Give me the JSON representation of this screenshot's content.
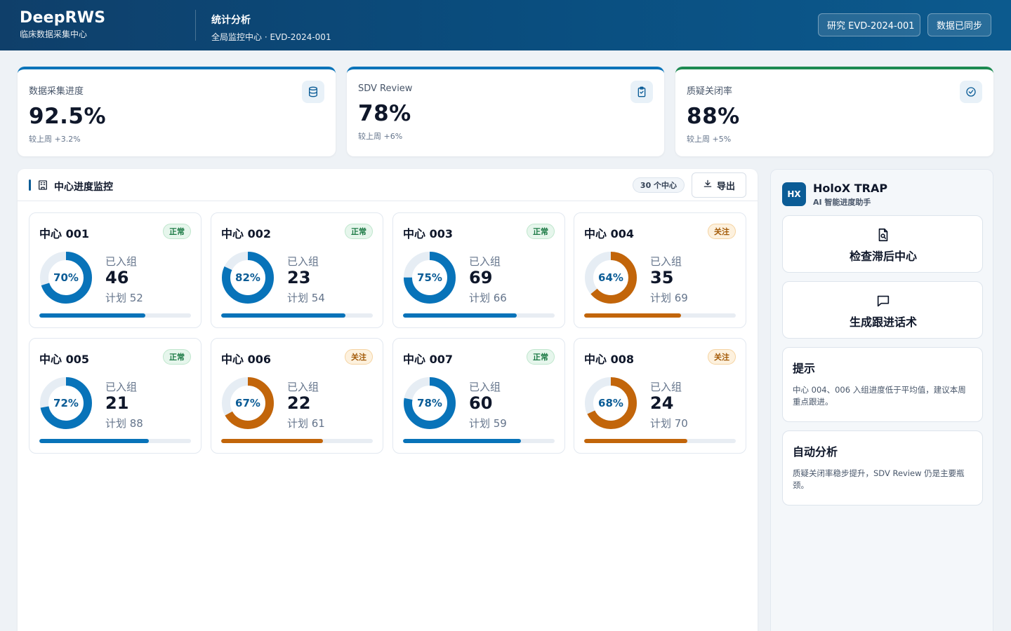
{
  "header": {
    "brand": "DeepRWS",
    "brand_sub": "临床数据采集中心",
    "page_title": "统计分析",
    "page_sub": "全局监控中心 · EVD-2024-001",
    "study_button": "研究 EVD-2024-001",
    "sync_button": "数据已同步"
  },
  "kpis": [
    {
      "label": "数据采集进度",
      "value": "92.5%",
      "delta": "较上周 +3.2%",
      "icon": "database-icon"
    },
    {
      "label": "SDV Review",
      "value": "78%",
      "delta": "较上周 +6%",
      "icon": "clipboard-check-icon"
    },
    {
      "label": "质疑关闭率",
      "value": "88%",
      "delta": "较上周 +5%",
      "icon": "check-circle-icon"
    }
  ],
  "panel": {
    "title": "中心进度监控",
    "count": "30 个中心",
    "export": "导出"
  },
  "centers": [
    {
      "name": "中心 001",
      "status": "正常",
      "level": "ok",
      "pct": 70,
      "pct_label": "70%",
      "enrolled_label": "已入组",
      "enrolled": "46",
      "plan": "计划 52"
    },
    {
      "name": "中心 002",
      "status": "正常",
      "level": "ok",
      "pct": 82,
      "pct_label": "82%",
      "enrolled_label": "已入组",
      "enrolled": "23",
      "plan": "计划 54"
    },
    {
      "name": "中心 003",
      "status": "正常",
      "level": "ok",
      "pct": 75,
      "pct_label": "75%",
      "enrolled_label": "已入组",
      "enrolled": "69",
      "plan": "计划 66"
    },
    {
      "name": "中心 004",
      "status": "关注",
      "level": "warn",
      "pct": 64,
      "pct_label": "64%",
      "enrolled_label": "已入组",
      "enrolled": "35",
      "plan": "计划 69"
    },
    {
      "name": "中心 005",
      "status": "正常",
      "level": "ok",
      "pct": 72,
      "pct_label": "72%",
      "enrolled_label": "已入组",
      "enrolled": "21",
      "plan": "计划 88"
    },
    {
      "name": "中心 006",
      "status": "关注",
      "level": "warn",
      "pct": 67,
      "pct_label": "67%",
      "enrolled_label": "已入组",
      "enrolled": "22",
      "plan": "计划 61"
    },
    {
      "name": "中心 007",
      "status": "正常",
      "level": "ok",
      "pct": 78,
      "pct_label": "78%",
      "enrolled_label": "已入组",
      "enrolled": "60",
      "plan": "计划 59"
    },
    {
      "name": "中心 008",
      "status": "关注",
      "level": "warn",
      "pct": 68,
      "pct_label": "68%",
      "enrolled_label": "已入组",
      "enrolled": "24",
      "plan": "计划 70"
    }
  ],
  "colors": {
    "ok": "#0873b9",
    "warn": "#c2650a",
    "track": "#e6edf4"
  },
  "assistant": {
    "logo": "HX",
    "name": "HoloX TRAP",
    "sub": "AI 智能进度助手",
    "actions": [
      {
        "label": "检查滞后中心",
        "icon": "file-search-icon"
      },
      {
        "label": "生成跟进话术",
        "icon": "message-square-icon"
      }
    ],
    "cards": [
      {
        "title": "提示",
        "text": "中心 004、006 入组进度低于平均值，建议本周重点跟进。"
      },
      {
        "title": "自动分析",
        "text": "质疑关闭率稳步提升，SDV Review 仍是主要瓶颈。"
      }
    ]
  }
}
